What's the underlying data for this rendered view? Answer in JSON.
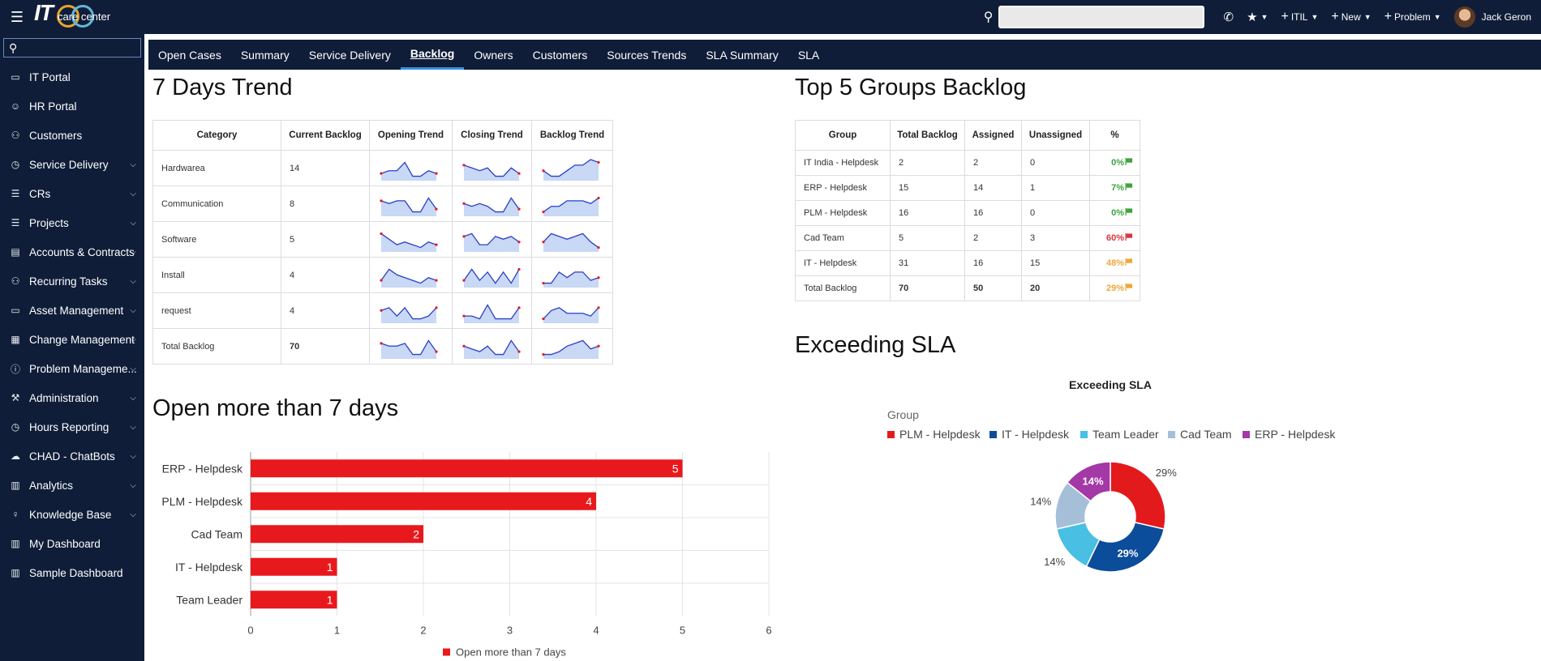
{
  "header": {
    "logo_it": "IT",
    "logo_sub": "care center",
    "nav": [
      {
        "label": "ITIL",
        "icon": "plus-icon"
      },
      {
        "label": "New",
        "icon": "plus-icon"
      },
      {
        "label": "Problem",
        "icon": "plus-icon"
      }
    ],
    "user_name": "Jack Geron"
  },
  "sidebar": {
    "items": [
      {
        "label": "IT Portal",
        "icon": "laptop-icon",
        "glyph": "▭",
        "chevron": false
      },
      {
        "label": "HR Portal",
        "icon": "user-circle-icon",
        "glyph": "☺",
        "chevron": false
      },
      {
        "label": "Customers",
        "icon": "users-icon",
        "glyph": "⚇",
        "chevron": false
      },
      {
        "label": "Service Delivery",
        "icon": "clock-icon",
        "glyph": "◷",
        "chevron": true
      },
      {
        "label": "CRs",
        "icon": "tasks-icon",
        "glyph": "☰",
        "chevron": true
      },
      {
        "label": "Projects",
        "icon": "tasks-icon",
        "glyph": "☰",
        "chevron": true
      },
      {
        "label": "Accounts & Contracts",
        "icon": "card-icon",
        "glyph": "▤",
        "chevron": true
      },
      {
        "label": "Recurring Tasks",
        "icon": "users-icon",
        "glyph": "⚇",
        "chevron": true
      },
      {
        "label": "Asset Management",
        "icon": "laptop-icon",
        "glyph": "▭",
        "chevron": true
      },
      {
        "label": "Change Management",
        "icon": "calendar-icon",
        "glyph": "▦",
        "chevron": true
      },
      {
        "label": "Problem Manageme...",
        "icon": "info-icon",
        "glyph": "ⓘ",
        "chevron": true
      },
      {
        "label": "Administration",
        "icon": "wrench-icon",
        "glyph": "⚒",
        "chevron": true
      },
      {
        "label": "Hours Reporting",
        "icon": "clock-icon",
        "glyph": "◷",
        "chevron": true
      },
      {
        "label": "CHAD - ChatBots",
        "icon": "chat-icon",
        "glyph": "☁",
        "chevron": true
      },
      {
        "label": "Analytics",
        "icon": "bar-chart-icon",
        "glyph": "▥",
        "chevron": true
      },
      {
        "label": "Knowledge Base",
        "icon": "lightbulb-icon",
        "glyph": "♀",
        "chevron": true
      },
      {
        "label": "My Dashboard",
        "icon": "bar-chart-icon",
        "glyph": "▥",
        "chevron": false
      },
      {
        "label": "Sample Dashboard",
        "icon": "bar-chart-icon",
        "glyph": "▥",
        "chevron": false
      }
    ]
  },
  "tabs": [
    "Open Cases",
    "Summary",
    "Service Delivery",
    "Backlog",
    "Owners",
    "Customers",
    "Sources Trends",
    "SLA Summary",
    "SLA"
  ],
  "active_tab": "Backlog",
  "trend": {
    "title": "7 Days Trend",
    "headers": [
      "Category",
      "Current Backlog",
      "Opening Trend",
      "Closing Trend",
      "Backlog Trend"
    ],
    "rows": [
      {
        "category": "Hardwarea",
        "backlog": "14",
        "bold": false,
        "open": [
          2,
          3,
          3,
          6,
          1,
          1,
          3,
          2
        ],
        "close": [
          5,
          4,
          3,
          4,
          1,
          1,
          4,
          2
        ],
        "back": [
          3,
          1,
          1,
          3,
          5,
          5,
          7,
          6
        ]
      },
      {
        "category": "Communication",
        "backlog": "8",
        "bold": false,
        "open": [
          5,
          4,
          5,
          5,
          1,
          1,
          6,
          2
        ],
        "close": [
          4,
          3,
          4,
          3,
          1,
          1,
          6,
          2
        ],
        "back": [
          1,
          3,
          3,
          5,
          5,
          5,
          4,
          6
        ]
      },
      {
        "category": "Software",
        "backlog": "5",
        "bold": false,
        "open": [
          6,
          4,
          2,
          3,
          2,
          1,
          3,
          2
        ],
        "close": [
          5,
          6,
          2,
          2,
          5,
          4,
          5,
          3
        ],
        "back": [
          3,
          6,
          5,
          4,
          5,
          6,
          3,
          1
        ]
      },
      {
        "category": "Install",
        "backlog": "4",
        "bold": false,
        "open": [
          2,
          6,
          4,
          3,
          2,
          1,
          3,
          2
        ],
        "close": [
          2,
          6,
          2,
          5,
          1,
          5,
          1,
          6
        ],
        "back": [
          1,
          1,
          5,
          3,
          5,
          5,
          2,
          3
        ]
      },
      {
        "category": "request",
        "backlog": "4",
        "bold": false,
        "open": [
          4,
          5,
          2,
          5,
          1,
          1,
          2,
          5
        ],
        "close": [
          2,
          2,
          1,
          6,
          1,
          1,
          1,
          5
        ],
        "back": [
          1,
          4,
          5,
          3,
          3,
          3,
          2,
          5
        ]
      },
      {
        "category": "Total Backlog",
        "backlog": "70",
        "bold": true,
        "open": [
          5,
          4,
          4,
          5,
          1,
          1,
          6,
          2
        ],
        "close": [
          4,
          3,
          2,
          4,
          1,
          1,
          6,
          2
        ],
        "back": [
          1,
          1,
          2,
          4,
          5,
          6,
          3,
          4
        ]
      }
    ]
  },
  "groups": {
    "title": "Top 5 Groups Backlog",
    "headers": [
      "Group",
      "Total Backlog",
      "Assigned",
      "Unassigned",
      "%"
    ],
    "rows": [
      {
        "group": "IT India - Helpdesk",
        "total": "2",
        "assigned": "2",
        "unassigned": "0",
        "pct": "0%",
        "color": "#3ea33e",
        "bold": false
      },
      {
        "group": "ERP - Helpdesk",
        "total": "15",
        "assigned": "14",
        "unassigned": "1",
        "pct": "7%",
        "color": "#3ea33e",
        "bold": false
      },
      {
        "group": "PLM - Helpdesk",
        "total": "16",
        "assigned": "16",
        "unassigned": "0",
        "pct": "0%",
        "color": "#3ea33e",
        "bold": false
      },
      {
        "group": "Cad Team",
        "total": "5",
        "assigned": "2",
        "unassigned": "3",
        "pct": "60%",
        "color": "#d9363e",
        "bold": false
      },
      {
        "group": "IT - Helpdesk",
        "total": "31",
        "assigned": "16",
        "unassigned": "15",
        "pct": "48%",
        "color": "#eda73a",
        "bold": false
      },
      {
        "group": "Total Backlog",
        "total": "70",
        "assigned": "50",
        "unassigned": "20",
        "pct": "29%",
        "color": "#eda73a",
        "bold": true
      }
    ]
  },
  "open7": {
    "title": "Open more than 7 days"
  },
  "sla": {
    "title": "Exceeding SLA"
  },
  "chart_data": [
    {
      "type": "bar",
      "orientation": "horizontal",
      "categories": [
        "ERP - Helpdesk",
        "PLM - Helpdesk",
        "Cad Team",
        "IT - Helpdesk",
        "Team Leader"
      ],
      "values": [
        5,
        4,
        2,
        1,
        1
      ],
      "series_name": "Open more than 7 days",
      "xlim": [
        0,
        6
      ],
      "xticks": [
        "0",
        "1",
        "2",
        "3",
        "4",
        "5",
        "6"
      ],
      "color": "#e8191d",
      "grid": true,
      "legend": "bottom"
    },
    {
      "type": "pie",
      "donut": true,
      "title": "Exceeding SLA",
      "legend_title": "Group",
      "legend": "top",
      "slices": [
        {
          "label": "PLM - Helpdesk",
          "value": 2,
          "pct": "29%",
          "color": "#e31a1c"
        },
        {
          "label": "IT - Helpdesk",
          "value": 2,
          "pct": "29%",
          "color": "#0b4c9b"
        },
        {
          "label": "Team Leader",
          "value": 1,
          "pct": "14%",
          "color": "#48bfe3"
        },
        {
          "label": "Cad Team",
          "value": 1,
          "pct": "14%",
          "color": "#a6bfd9"
        },
        {
          "label": "ERP - Helpdesk",
          "value": 1,
          "pct": "14%",
          "color": "#a338a6"
        }
      ]
    }
  ]
}
